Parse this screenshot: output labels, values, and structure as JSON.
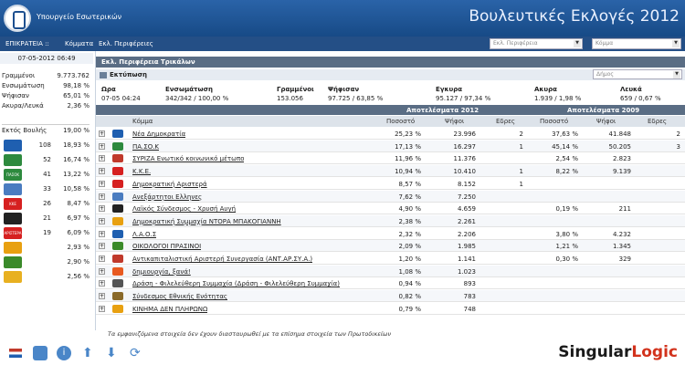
{
  "header": {
    "ministry": "Υπουργείο Εσωτερικών",
    "title": "Βουλευτικές Εκλογές 2012"
  },
  "nav": {
    "territory": "ΕΠΙΚΡΑΤΕΙΑ ::",
    "parties": "Κόμματα",
    "regions": "Εκλ. Περιφέρειες",
    "region_select": "Εκλ. Περιφέρεια",
    "party_select": "Κόμμα"
  },
  "left": {
    "datetime": "07-05-2012 06:49",
    "stats": [
      {
        "label": "Γραμμένοι",
        "value": "9.773.762"
      },
      {
        "label": "Ενσωμάτωση",
        "value": "98,18 %"
      },
      {
        "label": "Ψήφισαν",
        "value": "65,01 %"
      },
      {
        "label": "Ακυρα/Λευκά",
        "value": "2,36 %"
      }
    ],
    "outside": {
      "label": "Εκτός Βουλής",
      "value": "19,00 %"
    },
    "parties": [
      {
        "seats": "108",
        "pct": "18,93 %",
        "color": "#1f5fb0"
      },
      {
        "seats": "52",
        "pct": "16,74 %",
        "color": "#2d8a3e"
      },
      {
        "seats": "41",
        "pct": "13,22 %",
        "color": "#2d8a3e",
        "logo_text": "ΠΑΣΟΚ"
      },
      {
        "seats": "33",
        "pct": "10,58 %",
        "color": "#4a7cc0"
      },
      {
        "seats": "26",
        "pct": "8,47 %",
        "color": "#d62020",
        "logo_text": "ΚΚΕ"
      },
      {
        "seats": "21",
        "pct": "6,97 %",
        "color": "#222"
      },
      {
        "seats": "19",
        "pct": "6,09 %",
        "color": "#d62020",
        "logo_text": "ΑΡΙΣΤΕΡΑ"
      },
      {
        "seats": "",
        "pct": "2,93 %",
        "color": "#e8a010"
      },
      {
        "seats": "",
        "pct": "2,90 %",
        "color": "#3a8a2a"
      },
      {
        "seats": "",
        "pct": "2,56 %",
        "color": "#e8b020"
      }
    ]
  },
  "main": {
    "region_title": "Εκλ. Περιφέρεια Τρικάλων",
    "print": "Εκτύπωση",
    "municipality_select": "Δήμος",
    "summary_headers": [
      "Ωρα",
      "Ενσωμάτωση",
      "Γραμμένοι",
      "Ψήφισαν",
      "Εγκυρα",
      "Ακυρα",
      "Λευκά"
    ],
    "summary_values": [
      "07-05 04:24",
      "342/342 / 100,00 %",
      "153.056",
      "97.725 / 63,85 %",
      "95.127 / 97,34 %",
      "1.939 / 1,98 %",
      "659 / 0,67 %"
    ],
    "results2012": "Αποτελέσματα 2012",
    "results2009": "Αποτελέσματα 2009",
    "col_party": "Κόμμα",
    "col_pct": "Ποσοστό",
    "col_votes": "Ψήφοι",
    "col_seats": "Εδρες",
    "rows": [
      {
        "name": "Νέα Δημοκρατία",
        "p12": "25,23 %",
        "v12": "23.996",
        "s12": "2",
        "p09": "37,63 %",
        "v09": "41.848",
        "s09": "2",
        "c": "#1f5fb0"
      },
      {
        "name": "ΠΑ.ΣΟ.Κ",
        "p12": "17,13 %",
        "v12": "16.297",
        "s12": "1",
        "p09": "45,14 %",
        "v09": "50.205",
        "s09": "3",
        "c": "#2d8a3e"
      },
      {
        "name": "ΣΥΡΙΖΑ Ενωτικό κοινωνικό μέτωπο",
        "p12": "11,96 %",
        "v12": "11.376",
        "s12": "",
        "p09": "2,54 %",
        "v09": "2.823",
        "s09": "",
        "c": "#c0392b"
      },
      {
        "name": "Κ.Κ.Ε.",
        "p12": "10,94 %",
        "v12": "10.410",
        "s12": "1",
        "p09": "8,22 %",
        "v09": "9.139",
        "s09": "",
        "c": "#d62020"
      },
      {
        "name": "Δημοκρατική Αριστερά",
        "p12": "8,57 %",
        "v12": "8.152",
        "s12": "1",
        "p09": "",
        "v09": "",
        "s09": "",
        "c": "#d62020"
      },
      {
        "name": "Ανεξάρτητοι Ελληνες",
        "p12": "7,62 %",
        "v12": "7.250",
        "s12": "",
        "p09": "",
        "v09": "",
        "s09": "",
        "c": "#4a7cc0"
      },
      {
        "name": "Λαϊκός Σύνδεσμος - Χρυσή Αυγή",
        "p12": "4,90 %",
        "v12": "4.659",
        "s12": "",
        "p09": "0,19 %",
        "v09": "211",
        "s09": "",
        "c": "#222"
      },
      {
        "name": "Δημοκρατική Συμμαχία ΝΤΟΡΑ ΜΠΑΚΟΓΙΑΝΝΗ",
        "p12": "2,38 %",
        "v12": "2.261",
        "s12": "",
        "p09": "",
        "v09": "",
        "s09": "",
        "c": "#e8a010"
      },
      {
        "name": "Λ.Α.Ο.Σ",
        "p12": "2,32 %",
        "v12": "2.206",
        "s12": "",
        "p09": "3,80 %",
        "v09": "4.232",
        "s09": "",
        "c": "#1f5fb0"
      },
      {
        "name": "ΟΙΚΟΛΟΓΟΙ ΠΡΑΣΙΝΟΙ",
        "p12": "2,09 %",
        "v12": "1.985",
        "s12": "",
        "p09": "1,21 %",
        "v09": "1.345",
        "s09": "",
        "c": "#3a8a2a"
      },
      {
        "name": "Αντικαπιταλιστική Αριστερή Συνεργασία (ΑΝΤ.ΑΡ.ΣΥ.Α.)",
        "p12": "1,20 %",
        "v12": "1.141",
        "s12": "",
        "p09": "0,30 %",
        "v09": "329",
        "s09": "",
        "c": "#c0392b"
      },
      {
        "name": "δημιουργία, ξανά!",
        "p12": "1,08 %",
        "v12": "1.023",
        "s12": "",
        "p09": "",
        "v09": "",
        "s09": "",
        "c": "#e85a20"
      },
      {
        "name": "Δράση - Φιλελεύθερη Συμμαχία (Δράση - Φιλελεύθερη Συμμαχία)",
        "p12": "0,94 %",
        "v12": "893",
        "s12": "",
        "p09": "",
        "v09": "",
        "s09": "",
        "c": "#555"
      },
      {
        "name": "Σύνδεσμος Εθνικής Ενότητας",
        "p12": "0,82 %",
        "v12": "783",
        "s12": "",
        "p09": "",
        "v09": "",
        "s09": "",
        "c": "#8a6a2a"
      },
      {
        "name": "ΚΙΝΗΜΑ ΔΕΝ ΠΛΗΡΩΝΩ",
        "p12": "0,79 %",
        "v12": "748",
        "s12": "",
        "p09": "",
        "v09": "",
        "s09": "",
        "c": "#e8a010"
      }
    ]
  },
  "footer_note": "Τα εμφανιζόμενα στοιχεία δεν έχουν διασταυρωθεί με τα επίσημα στοιχεία των Πρωτοδικείων",
  "brand": {
    "a": "Singular",
    "b": "Logic"
  }
}
